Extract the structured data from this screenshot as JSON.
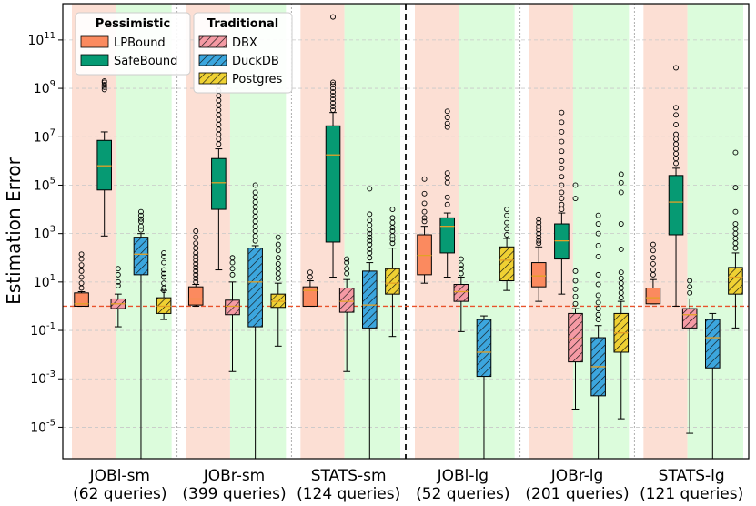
{
  "chart_data": {
    "type": "box",
    "ylabel": "Estimation Error",
    "yscale": "log10",
    "ylim_log10": [
      -6.3,
      12.5
    ],
    "y_ticks": [
      {
        "exp": -5,
        "label": "10^-5"
      },
      {
        "exp": -3,
        "label": "10^-3"
      },
      {
        "exp": -1,
        "label": "10^-1"
      },
      {
        "exp": 1,
        "label": "10^1"
      },
      {
        "exp": 3,
        "label": "10^3"
      },
      {
        "exp": 5,
        "label": "10^5"
      },
      {
        "exp": 7,
        "label": "10^7"
      },
      {
        "exp": 9,
        "label": "10^9"
      },
      {
        "exp": 11,
        "label": "10^11"
      }
    ],
    "reference_line_log10": 0,
    "grid": true,
    "legend": {
      "pessimistic": {
        "title": "Pessimistic",
        "entries": [
          {
            "key": "LPBound",
            "label": "LPBound"
          },
          {
            "key": "SafeBound",
            "label": "SafeBound"
          }
        ]
      },
      "traditional": {
        "title": "Traditional",
        "entries": [
          {
            "key": "DBX",
            "label": "DBX"
          },
          {
            "key": "DuckDB",
            "label": "DuckDB"
          },
          {
            "key": "Postgres",
            "label": "Postgres"
          }
        ]
      }
    },
    "series_style": {
      "LPBound": {
        "fill": "#fb8a5f",
        "hatch": false
      },
      "SafeBound": {
        "fill": "#069a73",
        "hatch": false
      },
      "DBX": {
        "fill": "#f59aa4",
        "hatch": true
      },
      "DuckDB": {
        "fill": "#3ca6de",
        "hatch": true
      },
      "Postgres": {
        "fill": "#efd133",
        "hatch": true
      }
    },
    "groups": [
      {
        "name": "JOBl-sm",
        "queries": "(62 queries)",
        "boxes": [
          {
            "series": "LPBound",
            "q1": 0,
            "median": 0.1,
            "q3": 0.55,
            "whislo": 0,
            "whishi": 0.6,
            "outliers": [
              0.75,
              0.95,
              1.2,
              1.45,
              1.7,
              1.95,
              2.15
            ]
          },
          {
            "series": "SafeBound",
            "q1": 4.8,
            "median": 5.8,
            "q3": 6.85,
            "whislo": 2.9,
            "whishi": 7.2,
            "outliers": [
              8.95,
              9.05,
              9.15,
              9.25,
              9.3
            ]
          },
          {
            "series": "DBX",
            "q1": -0.1,
            "median": 0.1,
            "q3": 0.3,
            "whislo": -0.85,
            "whishi": 0.5,
            "outliers": [
              0.85,
              1.0,
              1.3,
              1.55
            ]
          },
          {
            "series": "DuckDB",
            "q1": 1.3,
            "median": 2.15,
            "q3": 2.85,
            "whislo": -7.0,
            "whishi": 3.0,
            "outliers": [
              3.15,
              3.3,
              3.5,
              3.6,
              3.75,
              3.9
            ]
          },
          {
            "series": "Postgres",
            "q1": -0.3,
            "median": 0,
            "q3": 0.35,
            "whislo": -0.55,
            "whishi": 0.65,
            "outliers": [
              0.65,
              0.75,
              0.95,
              1.2,
              1.35,
              1.5,
              1.8,
              2.05,
              2.2
            ]
          }
        ]
      },
      {
        "name": "JOBr-sm",
        "queries": "(399 queries)",
        "boxes": [
          {
            "series": "LPBound",
            "q1": 0.05,
            "median": 0.3,
            "q3": 0.8,
            "whislo": 0,
            "whishi": 0.9,
            "outliers": [
              1.0,
              1.15,
              1.3,
              1.45,
              1.6,
              1.75,
              1.9,
              2.05,
              2.2,
              2.4,
              2.6,
              2.85,
              3.1
            ]
          },
          {
            "series": "SafeBound",
            "q1": 4.0,
            "median": 5.1,
            "q3": 6.1,
            "whislo": 1.5,
            "whishi": 6.5,
            "outliers": [
              6.7,
              6.9,
              7.1,
              7.3,
              7.5,
              7.7,
              7.9,
              8.1,
              8.3,
              8.5,
              8.7,
              8.9,
              9.1,
              9.3
            ]
          },
          {
            "series": "DBX",
            "q1": -0.35,
            "median": 0,
            "q3": 0.25,
            "whislo": -2.7,
            "whishi": 1.0,
            "outliers": [
              1.3,
              1.55,
              1.8,
              2.0
            ]
          },
          {
            "series": "DuckDB",
            "q1": -0.85,
            "median": 1.0,
            "q3": 2.4,
            "whislo": -7.0,
            "whishi": 2.5,
            "outliers": [
              2.7,
              2.9,
              3.1,
              3.3,
              3.5,
              3.7,
              3.9,
              4.1,
              4.3,
              4.5,
              4.7,
              5.0
            ]
          },
          {
            "series": "Postgres",
            "q1": -0.05,
            "median": 0.2,
            "q3": 0.5,
            "whislo": -1.65,
            "whishi": 0.95,
            "outliers": [
              1.15,
              1.35,
              1.55,
              1.75,
              2.0,
              2.3,
              2.55,
              2.85
            ]
          }
        ]
      },
      {
        "name": "STATS-sm",
        "queries": "(124 queries)",
        "boxes": [
          {
            "series": "LPBound",
            "q1": 0,
            "median": 0.65,
            "q3": 0.8,
            "whislo": 0,
            "whishi": 1.05,
            "outliers": [
              1.2,
              1.4
            ]
          },
          {
            "series": "SafeBound",
            "q1": 2.65,
            "median": 6.25,
            "q3": 7.45,
            "whislo": 1.2,
            "whishi": 8.0,
            "outliers": [
              8.1,
              8.25,
              8.4,
              8.55,
              8.7,
              8.85,
              9.0,
              9.15,
              9.25,
              11.95
            ]
          },
          {
            "series": "DBX",
            "q1": -0.25,
            "median": 0.2,
            "q3": 0.75,
            "whislo": -2.7,
            "whishi": 1.1,
            "outliers": [
              1.35,
              1.55,
              1.8,
              1.95
            ]
          },
          {
            "series": "DuckDB",
            "q1": -0.9,
            "median": 0.05,
            "q3": 1.45,
            "whislo": -7.0,
            "whishi": 1.8,
            "outliers": [
              2.0,
              2.2,
              2.35,
              2.55,
              2.7,
              2.85,
              3.0,
              3.15,
              3.35,
              3.55,
              3.8,
              4.85
            ]
          },
          {
            "series": "Postgres",
            "q1": 0.5,
            "median": 0.95,
            "q3": 1.55,
            "whislo": -1.25,
            "whishi": 2.4,
            "outliers": [
              2.6,
              2.75,
              2.9,
              3.1,
              3.25,
              3.45,
              3.65,
              4.0
            ]
          }
        ]
      },
      {
        "name": "JOBl-lg",
        "queries": "(52 queries)",
        "boxes": [
          {
            "series": "LPBound",
            "q1": 1.3,
            "median": 2.1,
            "q3": 2.95,
            "whislo": 0.95,
            "whishi": 3.3,
            "outliers": [
              3.5,
              3.65,
              3.9,
              4.25,
              4.65,
              5.25
            ]
          },
          {
            "series": "SafeBound",
            "q1": 2.2,
            "median": 3.3,
            "q3": 3.65,
            "whislo": 1.2,
            "whishi": 3.85,
            "outliers": [
              4.2,
              4.5,
              5.1,
              5.3,
              5.5,
              7.4,
              7.55,
              7.8,
              8.05
            ]
          },
          {
            "series": "DBX",
            "q1": 0.2,
            "median": 0.6,
            "q3": 0.9,
            "whislo": -1.05,
            "whishi": 1.2,
            "outliers": [
              1.35,
              1.55,
              1.7,
              1.95
            ]
          },
          {
            "series": "DuckDB",
            "q1": -2.9,
            "median": -1.9,
            "q3": -0.55,
            "whislo": -7.0,
            "whishi": -0.4,
            "outliers": []
          },
          {
            "series": "Postgres",
            "q1": 1.05,
            "median": 1.9,
            "q3": 2.45,
            "whislo": 0.65,
            "whishi": 2.8,
            "outliers": [
              2.95,
              3.2,
              3.45,
              3.75,
              4.0
            ]
          }
        ]
      },
      {
        "name": "JOBr-lg",
        "queries": "(201 queries)",
        "boxes": [
          {
            "series": "LPBound",
            "q1": 0.8,
            "median": 1.25,
            "q3": 1.8,
            "whislo": 0.2,
            "whishi": 2.45,
            "outliers": [
              2.6,
              2.7,
              2.85,
              3.0,
              3.15,
              3.3,
              3.45,
              3.6
            ]
          },
          {
            "series": "SafeBound",
            "q1": 1.95,
            "median": 2.7,
            "q3": 3.4,
            "whislo": 0.5,
            "whishi": 3.85,
            "outliers": [
              4.0,
              4.2,
              4.45,
              4.7,
              5.0,
              5.35,
              5.7,
              6.0,
              6.4,
              6.8,
              7.2,
              7.6,
              8.0
            ]
          },
          {
            "series": "DBX",
            "q1": -2.3,
            "median": -1.35,
            "q3": -0.3,
            "whislo": -4.25,
            "whishi": -0.1,
            "outliers": [
              0.1,
              0.4,
              0.7,
              1.05,
              1.45,
              4.45,
              5.0
            ]
          },
          {
            "series": "DuckDB",
            "q1": -3.7,
            "median": -2.5,
            "q3": -1.3,
            "whislo": -7.0,
            "whishi": -0.8,
            "outliers": [
              -0.55,
              -0.35,
              -0.1,
              0.15,
              0.45,
              0.9,
              1.3,
              2.05,
              2.5,
              3.0,
              3.4,
              3.75
            ]
          },
          {
            "series": "Postgres",
            "q1": -1.9,
            "median": -1.1,
            "q3": -0.3,
            "whislo": -4.65,
            "whishi": 0.2,
            "outliers": [
              0.35,
              0.55,
              0.75,
              0.95,
              1.15,
              1.4,
              2.35,
              3.4,
              4.7,
              5.1,
              5.45
            ]
          }
        ]
      },
      {
        "name": "STATS-lg",
        "queries": "(121 queries)",
        "boxes": [
          {
            "series": "LPBound",
            "q1": 0.1,
            "median": 0.35,
            "q3": 0.75,
            "whislo": 0.1,
            "whishi": 1.1,
            "outliers": [
              1.3,
              1.5,
              1.75,
              2.0,
              2.3,
              2.55
            ]
          },
          {
            "series": "SafeBound",
            "q1": 2.95,
            "median": 4.3,
            "q3": 5.4,
            "whislo": 0,
            "whishi": 5.7,
            "outliers": [
              5.9,
              6.1,
              6.3,
              6.5,
              6.7,
              6.9,
              7.1,
              7.5,
              7.9,
              8.2,
              9.85
            ]
          },
          {
            "series": "DBX",
            "q1": -0.9,
            "median": -0.35,
            "q3": -0.1,
            "whislo": -5.25,
            "whishi": 0.3,
            "outliers": [
              0.55,
              0.8,
              1.05
            ]
          },
          {
            "series": "DuckDB",
            "q1": -2.55,
            "median": -1.3,
            "q3": -0.55,
            "whislo": -7.0,
            "whishi": -0.3,
            "outliers": []
          },
          {
            "series": "Postgres",
            "q1": 0.5,
            "median": 1.2,
            "q3": 1.6,
            "whislo": -0.9,
            "whishi": 2.2,
            "outliers": [
              2.4,
              2.6,
              2.8,
              3.0,
              3.2,
              3.4,
              3.9,
              4.9,
              6.35
            ]
          }
        ]
      }
    ]
  }
}
